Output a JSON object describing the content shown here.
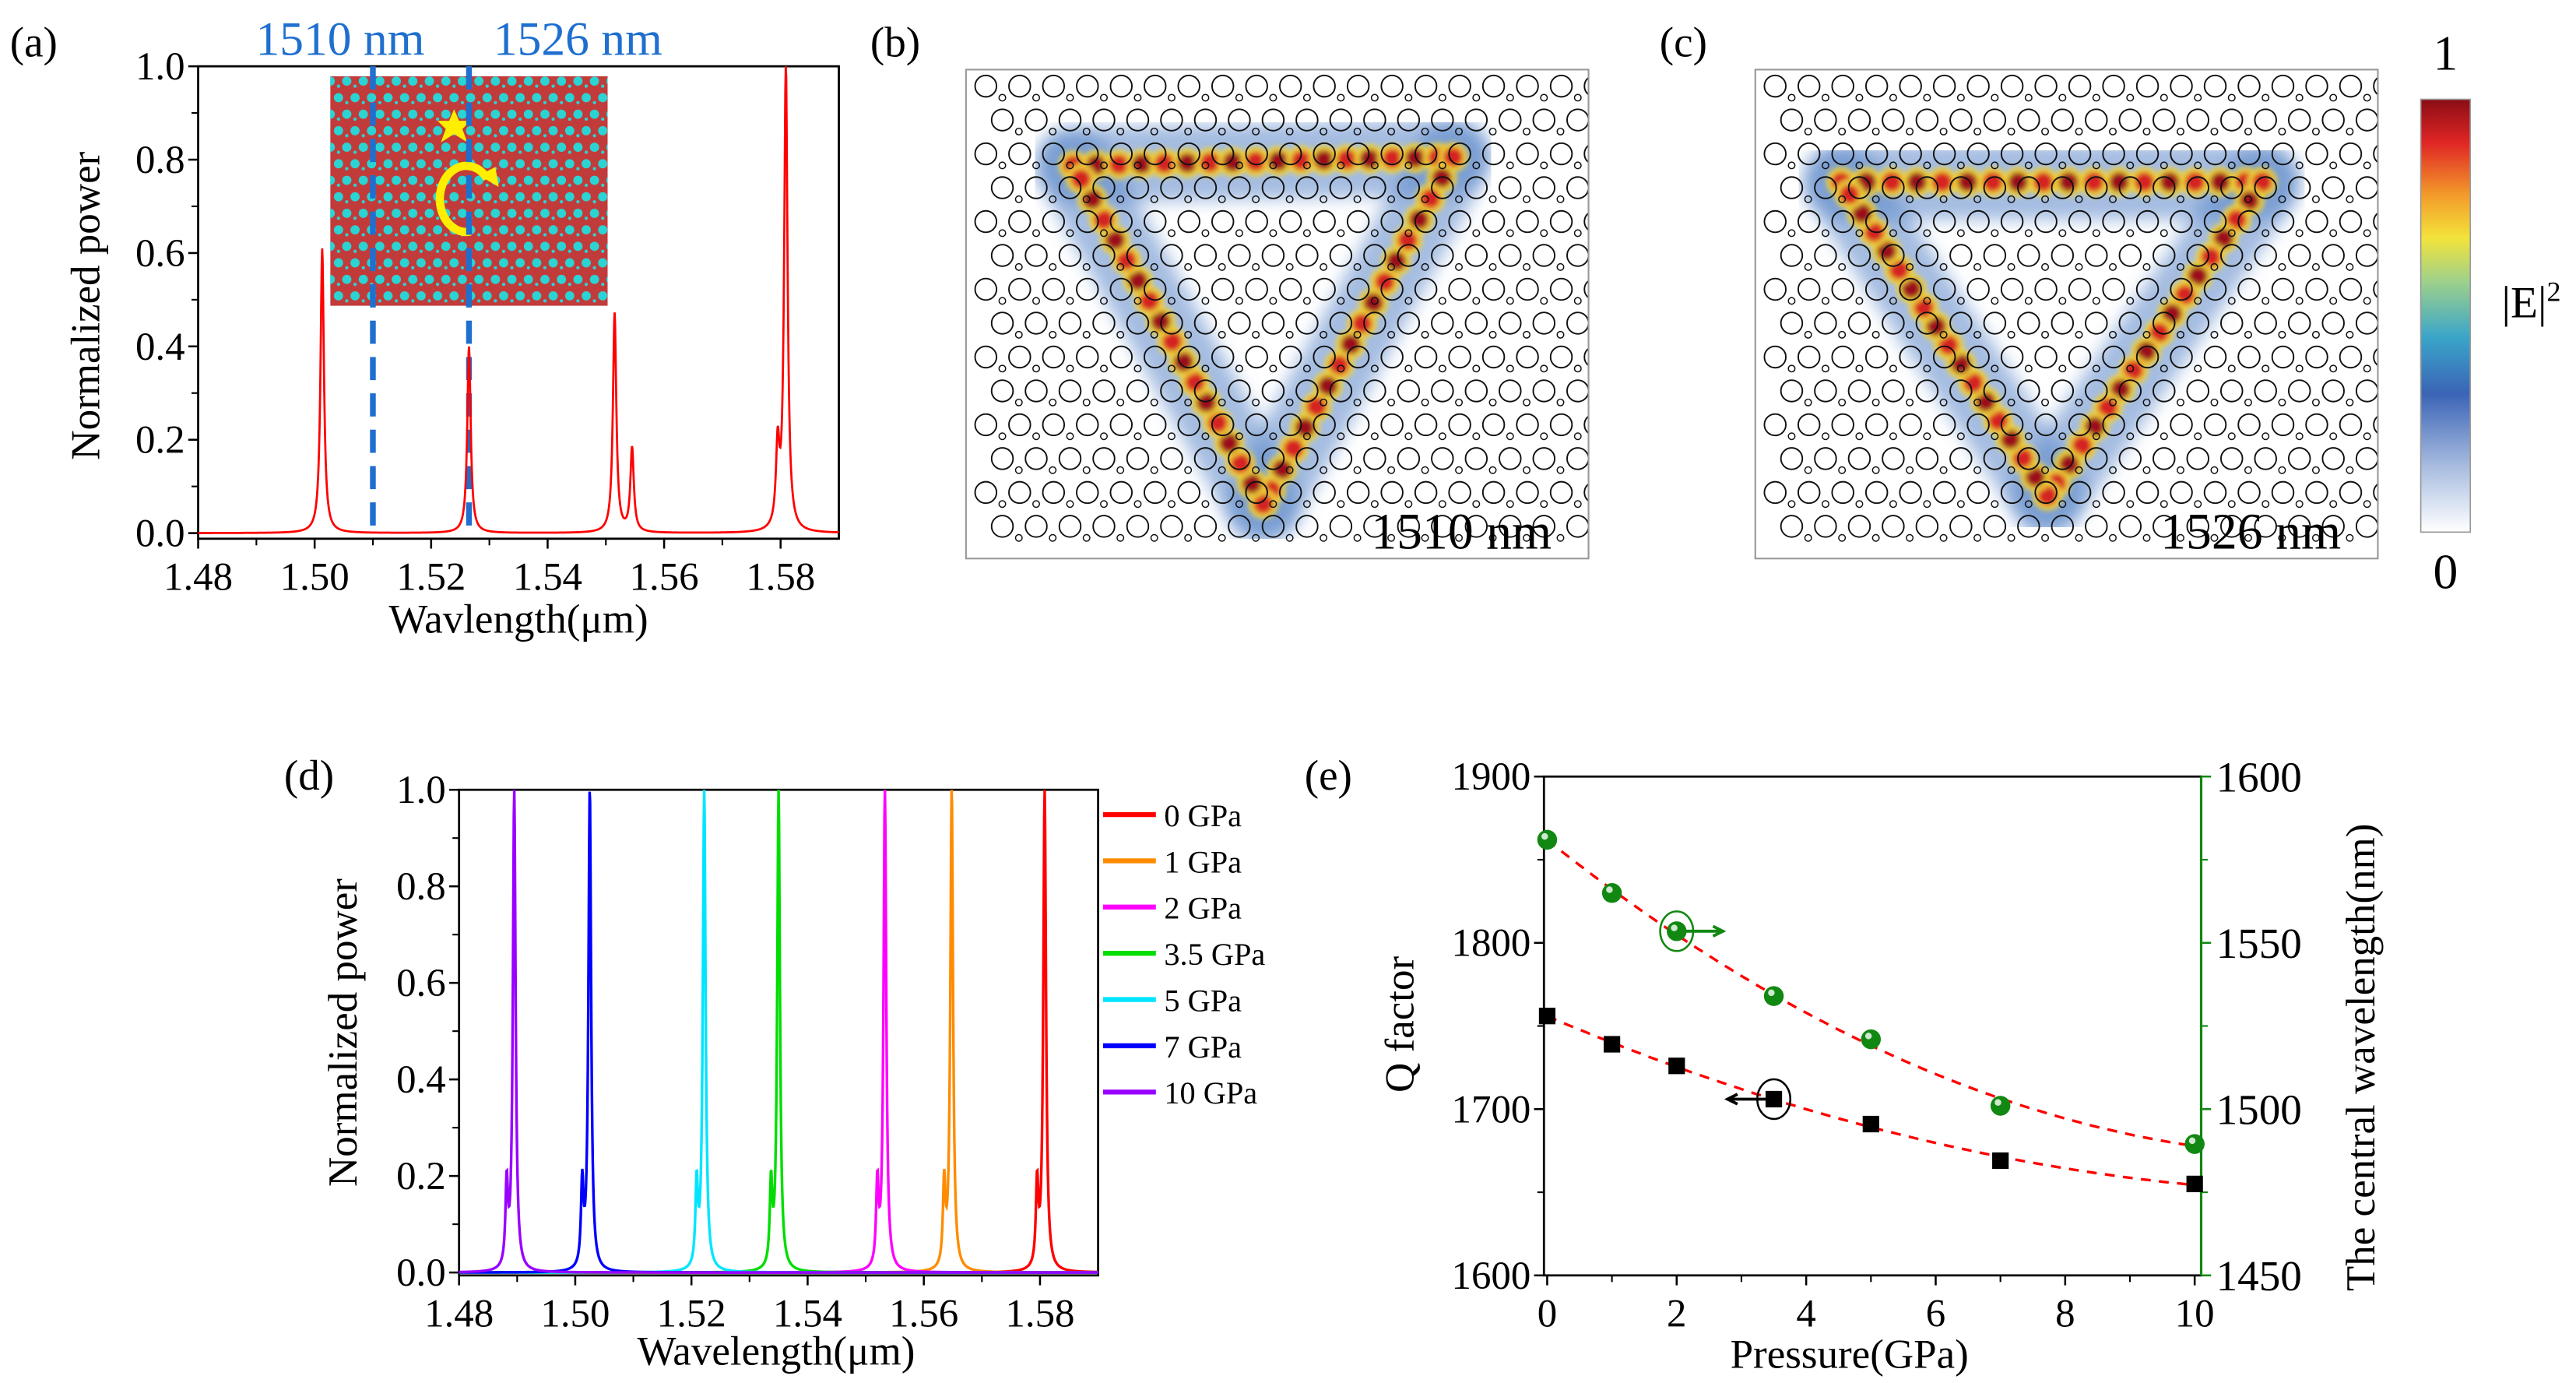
{
  "chart_data": [
    {
      "panel": "(a)",
      "type": "line",
      "xlabel": "Wavlength(μm)",
      "ylabel": "Normalized power",
      "xlim": [
        1.48,
        1.59
      ],
      "ylim": [
        0.0,
        1.0
      ],
      "xticks": [
        1.48,
        1.5,
        1.52,
        1.54,
        1.56,
        1.58
      ],
      "yticks": [
        0.0,
        0.2,
        0.4,
        0.6,
        0.8,
        1.0
      ],
      "series": [
        {
          "name": "spectrum",
          "color": "#ff0000",
          "peaks": [
            {
              "x": 1.5013,
              "y": 0.61
            },
            {
              "x": 1.5265,
              "y": 0.4
            },
            {
              "x": 1.5515,
              "y": 0.47
            },
            {
              "x": 1.5545,
              "y": 0.18
            },
            {
              "x": 1.5795,
              "y": 0.17
            },
            {
              "x": 1.5809,
              "y": 1.0
            }
          ]
        }
      ],
      "annotations": [
        {
          "text": "1510 nm",
          "x": 1.51,
          "color": "#1f6fcf"
        },
        {
          "text": "1526 nm",
          "x": 1.5265,
          "color": "#1f6fcf"
        }
      ]
    },
    {
      "panel": "(d)",
      "type": "line",
      "xlabel": "Wavelength(μm)",
      "ylabel": "Normalized power",
      "xlim": [
        1.48,
        1.59
      ],
      "ylim": [
        0.0,
        1.0
      ],
      "xticks": [
        1.48,
        1.5,
        1.52,
        1.54,
        1.56,
        1.58
      ],
      "yticks": [
        0.0,
        0.2,
        0.4,
        0.6,
        0.8,
        1.0
      ],
      "legend": "right-outside",
      "series": [
        {
          "name": "0 GPa",
          "color": "#ff0000",
          "peak": 1.5808
        },
        {
          "name": "1 GPa",
          "color": "#ff8c00",
          "peak": 1.5648
        },
        {
          "name": "2 GPa",
          "color": "#ff00ff",
          "peak": 1.5533
        },
        {
          "name": "3.5 GPa",
          "color": "#00dd00",
          "peak": 1.535
        },
        {
          "name": "5 GPa",
          "color": "#00e5ff",
          "peak": 1.5222
        },
        {
          "name": "7 GPa",
          "color": "#0000ff",
          "peak": 1.5025
        },
        {
          "name": "10 GPa",
          "color": "#9900ff",
          "peak": 1.4895
        }
      ]
    },
    {
      "panel": "(e)",
      "type": "scatter",
      "xlabel": "Pressure(GPa)",
      "ylabel": "Q factor",
      "ylabel_right": "The central wavelength(nm)",
      "xlim": [
        0,
        10
      ],
      "ylim": [
        1600,
        1900
      ],
      "ylim_right": [
        1450,
        1600
      ],
      "xticks": [
        0,
        2,
        4,
        6,
        8,
        10
      ],
      "yticks": [
        1600,
        1700,
        1800,
        1900
      ],
      "yticks_right": [
        1450,
        1500,
        1550,
        1600
      ],
      "x": [
        0,
        1,
        2,
        3.5,
        5,
        7,
        10
      ],
      "series": [
        {
          "name": "Q factor",
          "axis": "left",
          "color": "#000000",
          "marker": "square",
          "values": [
            1756,
            1739,
            1726,
            1706,
            1691,
            1669,
            1655
          ]
        },
        {
          "name": "Central wavelength",
          "axis": "right",
          "color": "#118811",
          "marker": "sphere",
          "values": [
            1581,
            1565,
            1553.5,
            1534,
            1521,
            1501,
            1489.5
          ]
        }
      ],
      "fit_color": "#ff0000"
    }
  ],
  "field_maps": [
    {
      "panel": "(b)",
      "label": "1510 nm"
    },
    {
      "panel": "(c)",
      "label": "1526 nm"
    }
  ],
  "colorbar": {
    "label": "|E|",
    "sup": "2",
    "max": "1",
    "min": "0"
  }
}
